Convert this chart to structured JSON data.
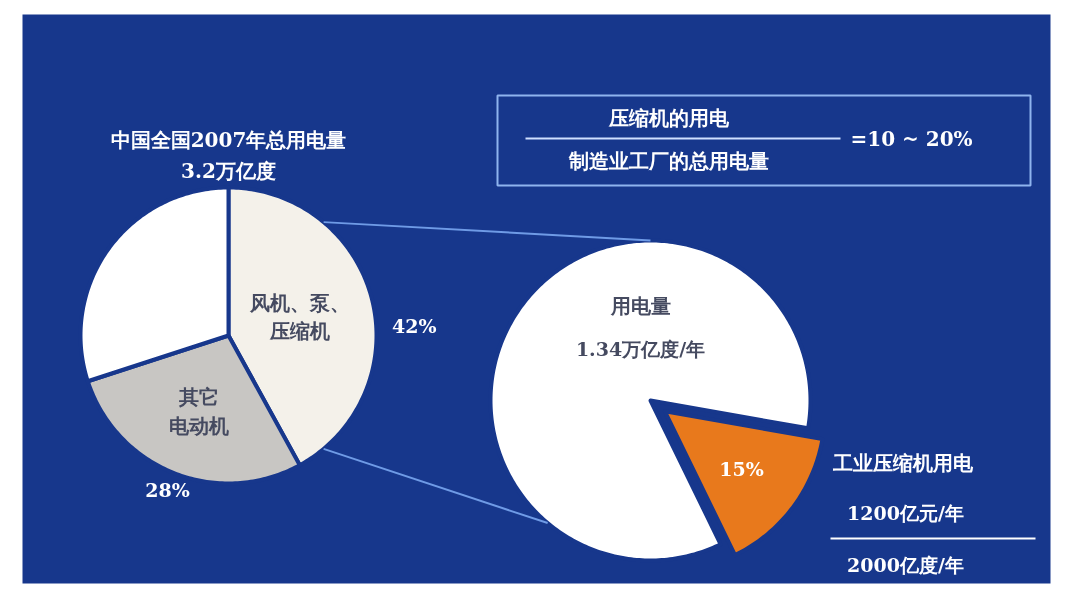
{
  "chart_data": [
    {
      "type": "pie",
      "title": "中国全国2007年总用电量\n3.2万亿度",
      "categories": [
        "风机、泵、压缩机",
        "其它电动机",
        null
      ],
      "values": [
        42,
        28,
        30
      ],
      "colors": [
        "#f4f1ea",
        "#c8c6c3",
        "#ffffff"
      ],
      "value_labels": [
        "42%",
        "28%",
        null
      ],
      "annotations": [
        "压缩机的用电",
        "制造业工厂的总用电量",
        "=10 ~ 20%"
      ]
    },
    {
      "type": "pie",
      "categories": [
        "用电量",
        "工业压缩机用电"
      ],
      "values": [
        85,
        15
      ],
      "colors": [
        "#ffffff",
        "#e8791c"
      ],
      "value_labels": [
        null,
        "15%"
      ],
      "annotations": [
        "1.34万亿度/年",
        "1200亿元/年",
        "2000亿度/年"
      ]
    }
  ]
}
